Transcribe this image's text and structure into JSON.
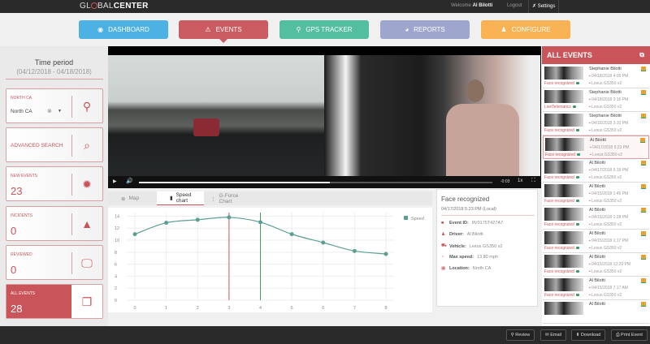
{
  "header": {
    "logo": "GLOBALCENTER",
    "logo_left": "GL",
    "logo_mid": "BAL",
    "logo_bold": "CENTER",
    "welcome": "Welcome",
    "user": "Al Bilotti",
    "logout": "Logout",
    "settings": "Settings"
  },
  "nav": [
    {
      "label": "DASHBOARD",
      "icon": "dashboard-icon",
      "color": "#45aee4"
    },
    {
      "label": "EVENTS",
      "icon": "warning-icon",
      "color": "#c9545a"
    },
    {
      "label": "GPS TRACKER",
      "icon": "map-pin-icon",
      "color": "#4cbc9c"
    },
    {
      "label": "REPORTS",
      "icon": "pie-chart-icon",
      "color": "#9aa3cc"
    },
    {
      "label": "CONFIGURE",
      "icon": "users-icon",
      "color": "#fbb04c"
    }
  ],
  "sidebar": {
    "time_title": "Time period",
    "time_range": "(04/12/2018 - 04/18/2018)",
    "region": {
      "label": "NORTH CA",
      "value": "North CA"
    },
    "advanced_search": "ADVANCED SEARCH",
    "cards": [
      {
        "label": "NEW EVENTS",
        "value": "23"
      },
      {
        "label": "INCIDENTS",
        "value": "0"
      },
      {
        "label": "REVIEWED",
        "value": "0"
      },
      {
        "label": "ALL EVENTS",
        "value": "28"
      }
    ]
  },
  "video": {
    "time": "-0:03",
    "rate": "1x",
    "progress": 0.54
  },
  "tabs": [
    {
      "label": "Map"
    },
    {
      "label": "Speed chart",
      "active": true
    },
    {
      "label": "G-Force Chart"
    }
  ],
  "chart_data": {
    "type": "line",
    "x": [
      0,
      1,
      2,
      3,
      4,
      5,
      6,
      7,
      8
    ],
    "series": [
      {
        "name": "Speed",
        "values": [
          11.0,
          12.9,
          13.4,
          13.8,
          13.0,
          11.0,
          9.6,
          8.2,
          7.7
        ],
        "color": "#5b9e93"
      }
    ],
    "yticks": [
      0,
      2,
      4,
      6,
      8,
      10,
      12,
      14
    ],
    "xticks": [
      0,
      1,
      2,
      3,
      4,
      5,
      6,
      7,
      8
    ],
    "ylim": [
      0,
      14.6
    ],
    "xlim": [
      0,
      8
    ],
    "grid": true,
    "legend": "top-right",
    "markers": [
      {
        "x": 3,
        "color": "#d9534f"
      },
      {
        "x": 4,
        "color": "#4a9a5a"
      }
    ]
  },
  "info": {
    "title": "Face recognized",
    "date": "04/17/2018 5:23 PM (Local)",
    "rows": [
      {
        "label": "Event ID:",
        "value": "8V0175T427A7"
      },
      {
        "label": "Driver:",
        "value": "Al Bilotti"
      },
      {
        "label": "Vehicle:",
        "value": "Lexus GS350 v2"
      },
      {
        "label": "Max speed:",
        "value": "13.80 mph"
      },
      {
        "label": "Location:",
        "value": "North CA"
      }
    ]
  },
  "events": {
    "title": "ALL EVENTS",
    "items": [
      {
        "name": "Stephanie Bilotti",
        "date": "04/18/2018 4:05 PM",
        "vehicle": "Lexus GS350 v2",
        "type": "Face recognized"
      },
      {
        "name": "Stephanie Bilotti",
        "date": "04/18/2018 3:16 PM",
        "vehicle": "Lexus GS350 v2",
        "type": "LiveTelematics"
      },
      {
        "name": "Stephanie Bilotti",
        "date": "04/18/2018 3:10 PM",
        "vehicle": "Lexus GS350 v2",
        "type": "Face recognized"
      },
      {
        "name": "Al Bilotti",
        "date": "04/17/2018 5:23 PM",
        "vehicle": "Lexus GS350 v2",
        "type": "Face recognized",
        "selected": true
      },
      {
        "name": "Al Bilotti",
        "date": "04/17/2018 5:16 PM",
        "vehicle": "Lexus GS350 v2",
        "type": "Face recognized"
      },
      {
        "name": "Al Bilotti",
        "date": "04/15/2018 1:45 PM",
        "vehicle": "Lexus GS350 v2",
        "type": "Face recognized"
      },
      {
        "name": "Al Bilotti",
        "date": "04/15/2018 1:28 PM",
        "vehicle": "Lexus GS350 v2",
        "type": "Face recognized"
      },
      {
        "name": "Al Bilotti",
        "date": "04/15/2018 1:17 PM",
        "vehicle": "Lexus GS350 v2",
        "type": "Face recognized"
      },
      {
        "name": "Al Bilotti",
        "date": "04/15/2018 12:29 PM",
        "vehicle": "Lexus GS350 v2",
        "type": "Face recognized"
      },
      {
        "name": "Al Bilotti",
        "date": "04/15/2018 7:17 AM",
        "vehicle": "Lexus GS350 v2",
        "type": "Face recognized"
      },
      {
        "name": "Al Bilotti",
        "date": "",
        "vehicle": "",
        "type": ""
      }
    ]
  },
  "footer": {
    "review": "Review",
    "email": "Email",
    "download": "Download",
    "print": "Print Event"
  }
}
